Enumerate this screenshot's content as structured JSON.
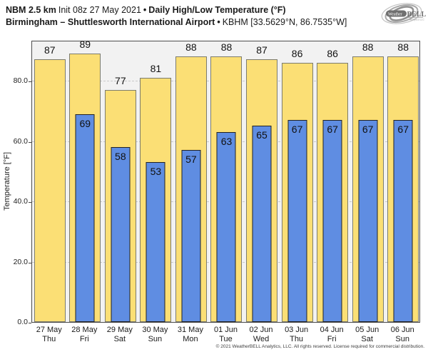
{
  "header": {
    "model": "NBM 2.5 km",
    "init": "Init 08z 27 May 2021",
    "sep": "•",
    "product": "Daily High/Low Temperature (°F)",
    "location": "Birmingham – Shuttlesworth International Airport",
    "sep2": "•",
    "station": "KBHM [33.5629°N, 86.7535°W]"
  },
  "logo": {
    "weather": "Weather",
    "bell": "BELL",
    "tagline": "Analytics LLC"
  },
  "chart_data": {
    "type": "bar",
    "title": "Daily High/Low Temperature (°F)",
    "ylabel": "Temperature [°F]",
    "ylim": [
      0,
      93.5
    ],
    "yticks": [
      0,
      20,
      40,
      60,
      80
    ],
    "ytick_labels": [
      "0.0",
      "20.0",
      "40.0",
      "60.0",
      "80.0"
    ],
    "grid": "dashed-horizontal",
    "legend": "none",
    "categories": [
      "27 May",
      "28 May",
      "29 May",
      "30 May",
      "31 May",
      "01 Jun",
      "02 Jun",
      "03 Jun",
      "04 Jun",
      "05 Jun",
      "06 Jun"
    ],
    "category_days": [
      "Thu",
      "Fri",
      "Sat",
      "Sun",
      "Mon",
      "Tue",
      "Wed",
      "Thu",
      "Fri",
      "Sat",
      "Sun"
    ],
    "series": [
      {
        "name": "Daily High",
        "color": "#FBDF75",
        "border_color": "#7c7c6e",
        "values": [
          87,
          89,
          77,
          81,
          88,
          88,
          87,
          86,
          86,
          88,
          88
        ]
      },
      {
        "name": "Daily Low",
        "color": "#5F8DE2",
        "border_color": "#222222",
        "values": [
          null,
          69,
          58,
          53,
          57,
          63,
          65,
          67,
          67,
          67,
          67
        ]
      }
    ]
  },
  "footer": {
    "copyright": "© 2021 WeatherBELL Analytics, LLC. All rights reserved. License required for commercial distribution."
  },
  "colors": {
    "plot_bg": "#F2F2F2",
    "frame": "#4d4d4d",
    "gridline": "#c9c9c9",
    "text": "#111111"
  }
}
